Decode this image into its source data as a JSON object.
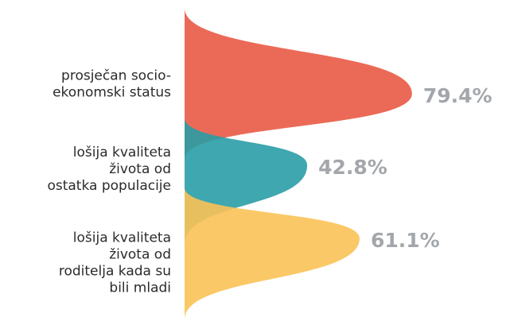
{
  "chart_data": {
    "type": "bell",
    "categories": [
      [
        "prosječan socio-",
        "ekonomski status"
      ],
      [
        "lošija kvaliteta",
        "života od",
        "ostatka populacije"
      ],
      [
        "lošija kvaliteta",
        "života od",
        "roditelja kada su",
        "bili mladi"
      ]
    ],
    "values": [
      79.4,
      42.8,
      61.1
    ],
    "value_labels": [
      "79.4%",
      "42.8%",
      "61.1%"
    ],
    "colors": [
      "#e95a45",
      "#2a9da6",
      "#fbc257"
    ]
  }
}
